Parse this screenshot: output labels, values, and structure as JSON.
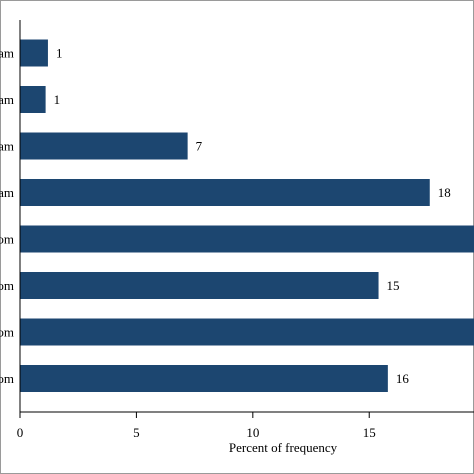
{
  "chart_data": {
    "type": "bar",
    "orientation": "horizontal",
    "categories": [
      "am",
      "am",
      "am",
      "am",
      "om",
      "om",
      "om",
      "om"
    ],
    "values": [
      1.2,
      1.1,
      7.2,
      17.6,
      20.5,
      15.4,
      20.5,
      15.8
    ],
    "value_labels": [
      "1",
      "1",
      "7",
      "18",
      "",
      "15",
      "",
      "16"
    ],
    "xlabel": "Percent of frequency",
    "ylabel": "",
    "xticks": [
      0,
      5,
      10,
      15
    ],
    "xtick_labels": [
      "0",
      "5",
      "10",
      "15"
    ],
    "xlim": [
      0,
      19.5
    ],
    "grid": false,
    "bar_color": "#1c4670"
  }
}
